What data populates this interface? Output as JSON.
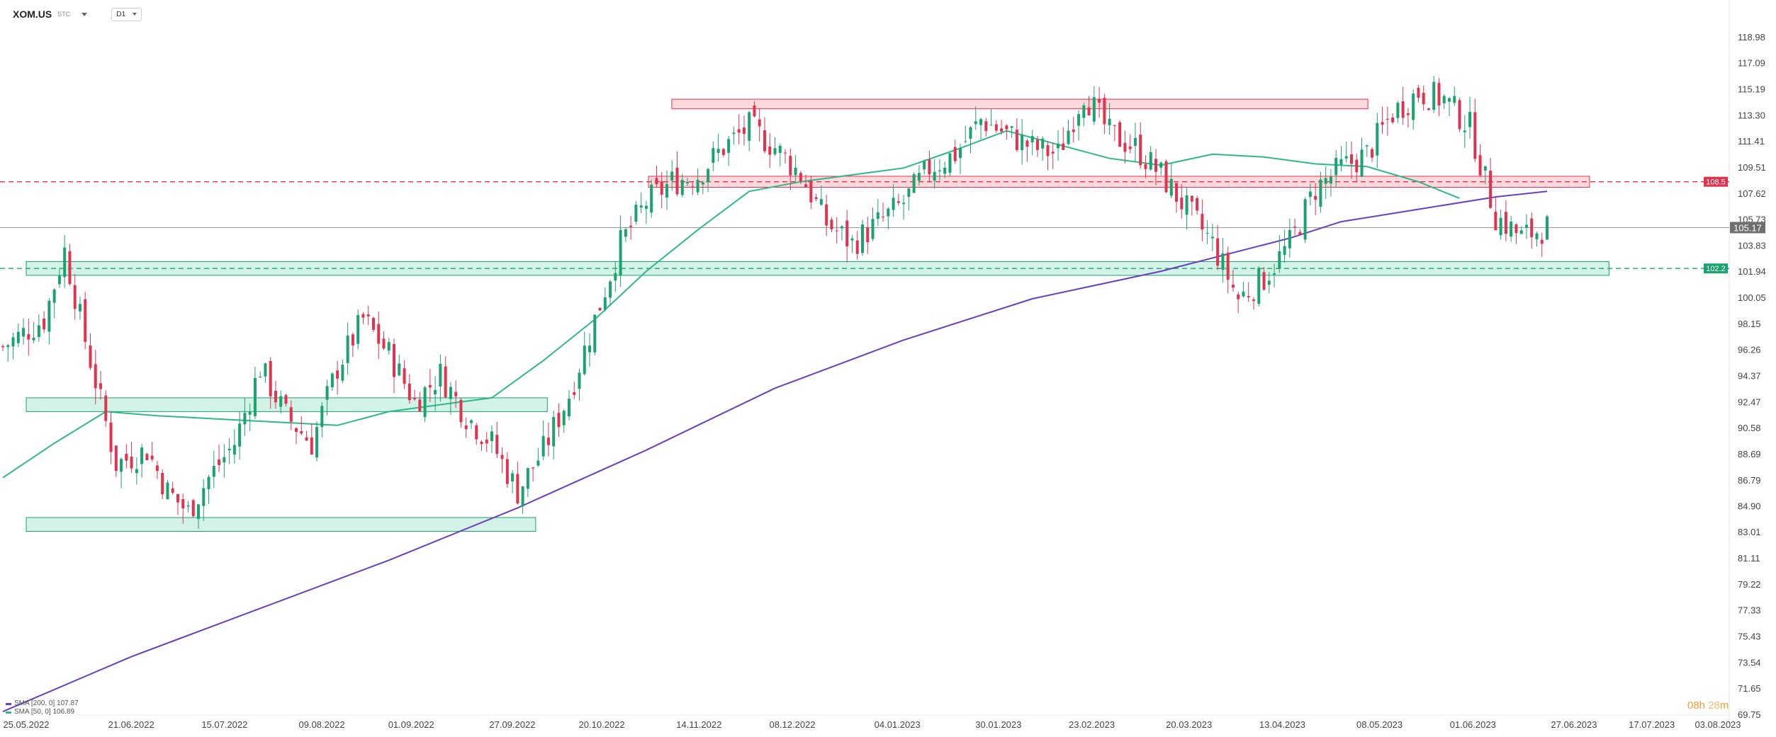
{
  "header": {
    "symbol": "XOM.US",
    "symbol_suffix": "STC",
    "interval": "D1"
  },
  "legend": [
    {
      "label": "SMA [200, 0] 107.87",
      "color": "#6a3fbf"
    },
    {
      "label": "SMA [50, 0] 106.89",
      "color": "#2eb88a"
    }
  ],
  "timer": {
    "hours": "08h",
    "minutes": "28",
    "unit": "m"
  },
  "chart_data": {
    "type": "candlestick",
    "y_ticks": [
      "118.98",
      "117.09",
      "115.19",
      "113.30",
      "111.41",
      "109.51",
      "107.62",
      "105.73",
      "103.83",
      "101.94",
      "100.05",
      "98.15",
      "96.26",
      "94.37",
      "92.47",
      "90.58",
      "88.69",
      "86.79",
      "84.90",
      "83.01",
      "81.11",
      "79.22",
      "77.33",
      "75.43",
      "73.54",
      "71.65",
      "69.75"
    ],
    "ylim": [
      69.75,
      118.98
    ],
    "x_ticks": [
      "25.05.2022",
      "21.06.2022",
      "15.07.2022",
      "09.08.2022",
      "01.09.2022",
      "27.09.2022",
      "20.10.2022",
      "14.11.2022",
      "08.12.2022",
      "04.01.2023",
      "30.01.2023",
      "23.02.2023",
      "20.03.2023",
      "13.04.2023",
      "08.05.2023",
      "01.06.2023",
      "27.06.2023",
      "17.07.2023",
      "03.08.2023"
    ],
    "last_price": "105.17",
    "price_colors": {
      "up": "#1aa36f",
      "down": "#e0334f"
    },
    "price_levels": [
      {
        "label": "108.5",
        "value": 108.5,
        "color": "#e0334f",
        "style": "dashed"
      },
      {
        "label": "102.2",
        "value": 102.2,
        "color": "#1aa36f",
        "style": "dashed"
      }
    ],
    "zones": [
      {
        "color": "red",
        "x_from": "07.11.2022",
        "x_to": "05.05.2023",
        "y_from": 113.8,
        "y_to": 114.5
      },
      {
        "color": "red",
        "x_from": "01.11.2022",
        "x_to": "01.07.2023",
        "y_from": 108.1,
        "y_to": 108.9
      },
      {
        "color": "green",
        "x_from": "25.05.2022",
        "x_to": "06.07.2023",
        "y_from": 101.7,
        "y_to": 102.7
      },
      {
        "color": "green",
        "x_from": "25.05.2022",
        "x_to": "06.10.2022",
        "y_from": 91.8,
        "y_to": 92.8
      },
      {
        "color": "green",
        "x_from": "25.05.2022",
        "x_to": "03.10.2022",
        "y_from": 83.1,
        "y_to": 84.1
      }
    ],
    "sma200": {
      "name": "SMA [200, 0]",
      "points": [
        [
          0,
          70.0
        ],
        [
          25,
          74.0
        ],
        [
          50,
          77.5
        ],
        [
          75,
          81.0
        ],
        [
          100,
          84.8
        ],
        [
          125,
          89.0
        ],
        [
          150,
          93.5
        ],
        [
          175,
          97.0
        ],
        [
          200,
          100.0
        ],
        [
          225,
          102.0
        ],
        [
          250,
          104.4
        ],
        [
          260,
          105.6
        ],
        [
          275,
          106.5
        ],
        [
          290,
          107.4
        ],
        [
          300,
          107.8
        ]
      ]
    },
    "sma50": {
      "name": "SMA [50, 0]",
      "points": [
        [
          0,
          87.0
        ],
        [
          10,
          89.5
        ],
        [
          20,
          91.8
        ],
        [
          30,
          91.5
        ],
        [
          40,
          91.3
        ],
        [
          55,
          91.0
        ],
        [
          65,
          90.8
        ],
        [
          75,
          91.8
        ],
        [
          85,
          92.3
        ],
        [
          95,
          92.8
        ],
        [
          105,
          95.5
        ],
        [
          115,
          98.5
        ],
        [
          125,
          102.0
        ],
        [
          135,
          105.0
        ],
        [
          145,
          107.8
        ],
        [
          155,
          108.5
        ],
        [
          165,
          109.0
        ],
        [
          175,
          109.5
        ],
        [
          185,
          110.8
        ],
        [
          195,
          112.2
        ],
        [
          205,
          111.2
        ],
        [
          215,
          110.2
        ],
        [
          225,
          109.7
        ],
        [
          235,
          110.5
        ],
        [
          245,
          110.3
        ],
        [
          255,
          109.8
        ],
        [
          265,
          109.6
        ],
        [
          275,
          108.5
        ],
        [
          283,
          107.3
        ]
      ]
    }
  }
}
